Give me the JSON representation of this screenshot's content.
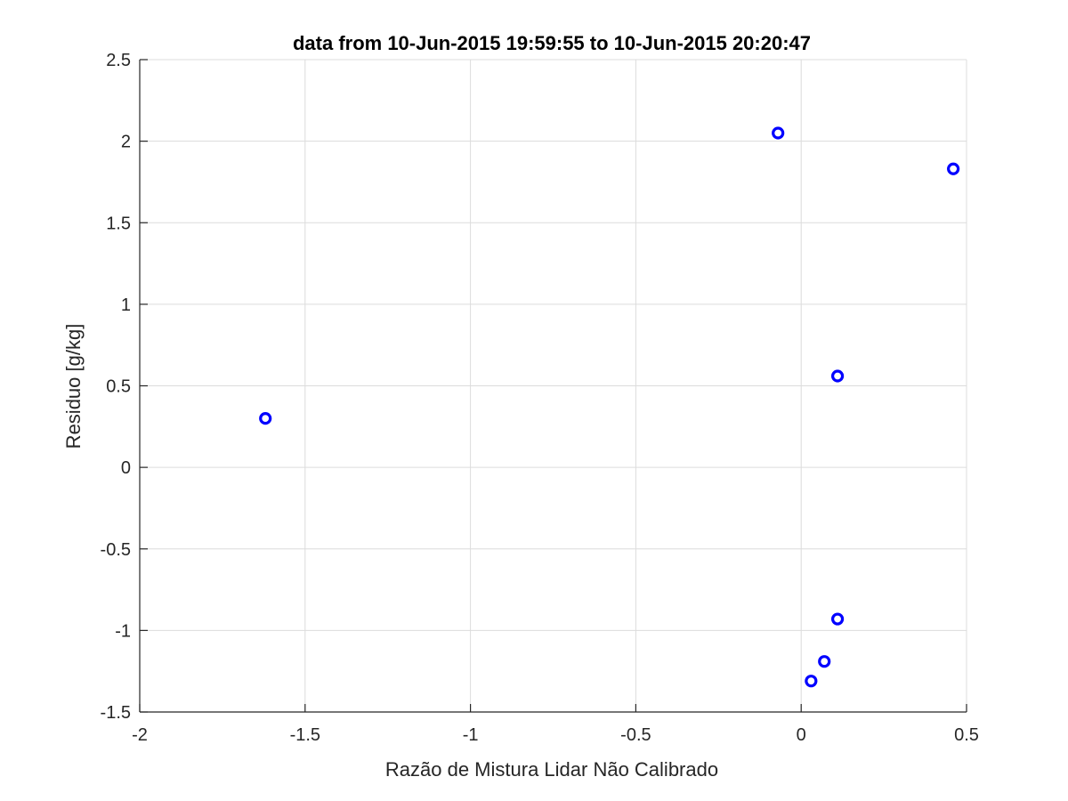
{
  "chart_data": {
    "type": "scatter",
    "title": "data from 10-Jun-2015 19:59:55 to 10-Jun-2015 20:20:47",
    "xlabel": "Razão de Mistura Lidar Não Calibrado",
    "ylabel": "Residuo [g/kg]",
    "xlim": [
      -2,
      0.5
    ],
    "ylim": [
      -1.5,
      2.5
    ],
    "xticks": [
      -2,
      -1.5,
      -1,
      -0.5,
      0,
      0.5
    ],
    "xtick_labels": [
      "-2",
      "-1.5",
      "-1",
      "-0.5",
      "0",
      "0.5"
    ],
    "yticks": [
      -1.5,
      -1,
      -0.5,
      0,
      0.5,
      1,
      1.5,
      2,
      2.5
    ],
    "ytick_labels": [
      "-1.5",
      "-1",
      "-0.5",
      "0",
      "0.5",
      "1",
      "1.5",
      "2",
      "2.5"
    ],
    "grid": true,
    "marker": "circle",
    "marker_color": "#0000ff",
    "series": [
      {
        "points": [
          {
            "x": -1.62,
            "y": 0.3
          },
          {
            "x": -0.07,
            "y": 2.05
          },
          {
            "x": 0.46,
            "y": 1.83
          },
          {
            "x": 0.11,
            "y": 0.56
          },
          {
            "x": 0.11,
            "y": -0.93
          },
          {
            "x": 0.07,
            "y": -1.19
          },
          {
            "x": 0.03,
            "y": -1.31
          }
        ]
      }
    ]
  }
}
